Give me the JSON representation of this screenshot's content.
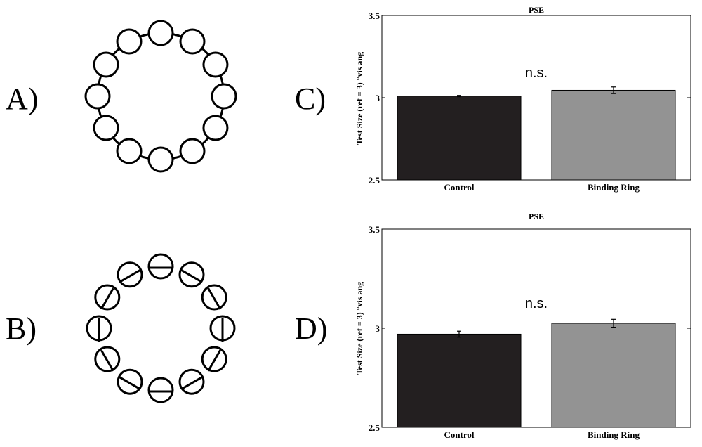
{
  "panel_labels": {
    "a": "A)",
    "b": "B)",
    "c": "C)",
    "d": "D)"
  },
  "chart_data": [
    {
      "type": "bar",
      "title": "PSE",
      "ylabel": "Test Size (ref = 3) °vis ang",
      "categories": [
        "Control",
        "Binding Ring"
      ],
      "values": [
        3.01,
        3.045
      ],
      "errors": [
        0.004,
        0.02
      ],
      "colors": [
        "#231f20",
        "#939393"
      ],
      "ylim": [
        2.5,
        3.5
      ],
      "yticks": [
        "2.5",
        "3",
        "3.5"
      ],
      "annotation": "n.s.",
      "grid": false
    },
    {
      "type": "bar",
      "title": "PSE",
      "ylabel": "Test Size (ref = 3) °vis ang",
      "categories": [
        "Control",
        "Binding Ring"
      ],
      "values": [
        2.97,
        3.025
      ],
      "errors": [
        0.015,
        0.02
      ],
      "colors": [
        "#231f20",
        "#939393"
      ],
      "ylim": [
        2.5,
        3.5
      ],
      "yticks": [
        "2.5",
        "3",
        "3.5"
      ],
      "annotation": "n.s.",
      "grid": false
    }
  ]
}
